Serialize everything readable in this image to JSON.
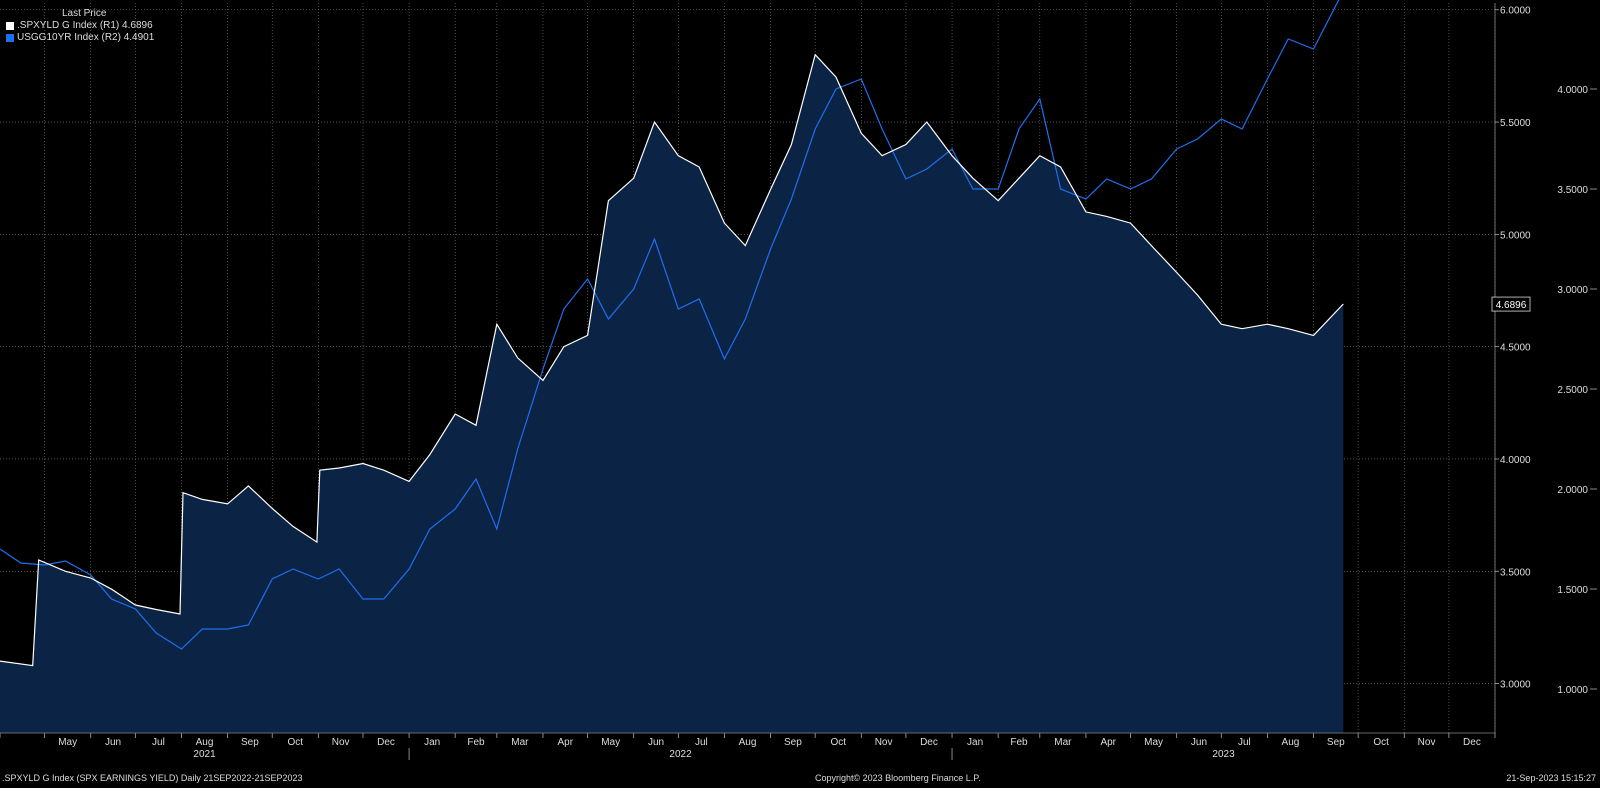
{
  "legend": {
    "header": "Last Price",
    "series": [
      {
        "label": ".SPXYLD G Index  (R1) 4.6896",
        "color": "#ffffff"
      },
      {
        "label": "USGG10YR Index  (R2) 4.4901",
        "color": "#1e6ff0"
      }
    ]
  },
  "footer": {
    "left": ".SPXYLD G Index (SPX EARNINGS YIELD)  Daily 21SEP2022-21SEP2023",
    "center": "Copyright© 2023 Bloomberg Finance L.P.",
    "right": "21-Sep-2023 15:15:27"
  },
  "colors": {
    "background": "#000000",
    "area": "#0b2344",
    "spx": "#ffffff",
    "ust": "#1e6ff0",
    "grid": "#7f7f7f"
  },
  "chart_data": {
    "type": "line",
    "x_axis": {
      "months": [
        "May",
        "Jun",
        "Jul",
        "Aug",
        "Sep",
        "Oct",
        "Nov",
        "Dec",
        "Jan",
        "Feb",
        "Mar",
        "Apr",
        "May",
        "Jun",
        "Jul",
        "Aug",
        "Sep",
        "Oct",
        "Nov",
        "Dec",
        "Jan",
        "Feb",
        "Mar",
        "Apr",
        "May",
        "Jun",
        "Jul",
        "Aug",
        "Sep",
        "Oct",
        "Nov",
        "Dec"
      ],
      "years": [
        "2021",
        "2022",
        "2023"
      ]
    },
    "axis_r1": {
      "ticks": [
        "6.0000",
        "5.5000",
        "5.0000",
        "4.5000",
        "4.0000",
        "3.5000",
        "3.0000"
      ],
      "range": [
        2.78,
        6.03
      ]
    },
    "axis_r2": {
      "ticks": [
        "4.0000",
        "3.5000",
        "3.0000",
        "2.5000",
        "2.0000",
        "1.5000",
        "1.0000"
      ],
      "range": [
        0.78,
        4.43
      ]
    },
    "grid": true,
    "legend_position": "top-left",
    "series": [
      {
        "name": ".SPXYLD G Index",
        "axis": "R1",
        "last": "4.6896",
        "x": [
          "2021-04-01",
          "2021-04-23",
          "2021-04-27",
          "2021-05-15",
          "2021-06-01",
          "2021-06-15",
          "2021-07-01",
          "2021-07-15",
          "2021-07-31",
          "2021-08-02",
          "2021-08-15",
          "2021-09-01",
          "2021-09-15",
          "2021-10-01",
          "2021-10-15",
          "2021-10-31",
          "2021-11-02",
          "2021-11-15",
          "2021-12-01",
          "2021-12-15",
          "2022-01-01",
          "2022-01-15",
          "2022-02-01",
          "2022-02-15",
          "2022-03-01",
          "2022-03-15",
          "2022-04-01",
          "2022-04-15",
          "2022-05-01",
          "2022-05-15",
          "2022-06-01",
          "2022-06-15",
          "2022-07-01",
          "2022-07-15",
          "2022-08-01",
          "2022-08-15",
          "2022-09-01",
          "2022-09-15",
          "2022-10-01",
          "2022-10-15",
          "2022-11-01",
          "2022-11-15",
          "2022-12-01",
          "2022-12-15",
          "2023-01-01",
          "2023-01-15",
          "2023-02-01",
          "2023-02-15",
          "2023-03-01",
          "2023-03-15",
          "2023-04-01",
          "2023-04-15",
          "2023-05-01",
          "2023-05-15",
          "2023-06-01",
          "2023-06-15",
          "2023-07-01",
          "2023-07-15",
          "2023-08-01",
          "2023-08-15",
          "2023-09-01",
          "2023-09-21"
        ],
        "values": [
          3.1,
          3.08,
          3.55,
          3.5,
          3.47,
          3.42,
          3.35,
          3.33,
          3.31,
          3.85,
          3.82,
          3.8,
          3.88,
          3.78,
          3.7,
          3.63,
          3.95,
          3.96,
          3.98,
          3.95,
          3.9,
          4.02,
          4.2,
          4.15,
          4.6,
          4.45,
          4.35,
          4.5,
          4.55,
          5.15,
          5.25,
          5.5,
          5.35,
          5.3,
          5.05,
          4.95,
          5.2,
          5.4,
          5.8,
          5.7,
          5.45,
          5.35,
          5.4,
          5.5,
          5.35,
          5.25,
          5.15,
          5.25,
          5.35,
          5.3,
          5.1,
          5.08,
          5.05,
          4.95,
          4.83,
          4.73,
          4.6,
          4.58,
          4.6,
          4.58,
          4.55,
          4.69
        ]
      },
      {
        "name": "USGG10YR Index",
        "axis": "R2",
        "last": "4.4901",
        "x": [
          "2021-04-01",
          "2021-04-15",
          "2021-05-01",
          "2021-05-15",
          "2021-06-01",
          "2021-06-15",
          "2021-07-01",
          "2021-07-15",
          "2021-08-01",
          "2021-08-15",
          "2021-09-01",
          "2021-09-15",
          "2021-10-01",
          "2021-10-15",
          "2021-11-01",
          "2021-11-15",
          "2021-12-01",
          "2021-12-15",
          "2022-01-01",
          "2022-01-15",
          "2022-02-01",
          "2022-02-15",
          "2022-03-01",
          "2022-03-15",
          "2022-04-01",
          "2022-04-15",
          "2022-05-01",
          "2022-05-15",
          "2022-06-01",
          "2022-06-15",
          "2022-07-01",
          "2022-07-15",
          "2022-08-01",
          "2022-08-15",
          "2022-09-01",
          "2022-09-15",
          "2022-10-01",
          "2022-10-15",
          "2022-11-01",
          "2022-11-15",
          "2022-12-01",
          "2022-12-15",
          "2023-01-01",
          "2023-01-15",
          "2023-02-01",
          "2023-02-15",
          "2023-03-01",
          "2023-03-15",
          "2023-04-01",
          "2023-04-15",
          "2023-05-01",
          "2023-05-15",
          "2023-06-01",
          "2023-06-15",
          "2023-07-01",
          "2023-07-15",
          "2023-08-01",
          "2023-08-15",
          "2023-09-01",
          "2023-09-21"
        ],
        "values": [
          1.7,
          1.63,
          1.62,
          1.64,
          1.57,
          1.45,
          1.4,
          1.28,
          1.2,
          1.3,
          1.3,
          1.32,
          1.55,
          1.6,
          1.55,
          1.6,
          1.45,
          1.45,
          1.6,
          1.8,
          1.9,
          2.05,
          1.8,
          2.2,
          2.6,
          2.9,
          3.05,
          2.85,
          3.0,
          3.25,
          2.9,
          2.95,
          2.65,
          2.85,
          3.2,
          3.45,
          3.8,
          4.0,
          4.05,
          3.8,
          3.55,
          3.6,
          3.7,
          3.5,
          3.5,
          3.8,
          3.95,
          3.5,
          3.45,
          3.55,
          3.5,
          3.55,
          3.7,
          3.75,
          3.85,
          3.8,
          4.05,
          4.25,
          4.2,
          4.49
        ]
      }
    ]
  }
}
